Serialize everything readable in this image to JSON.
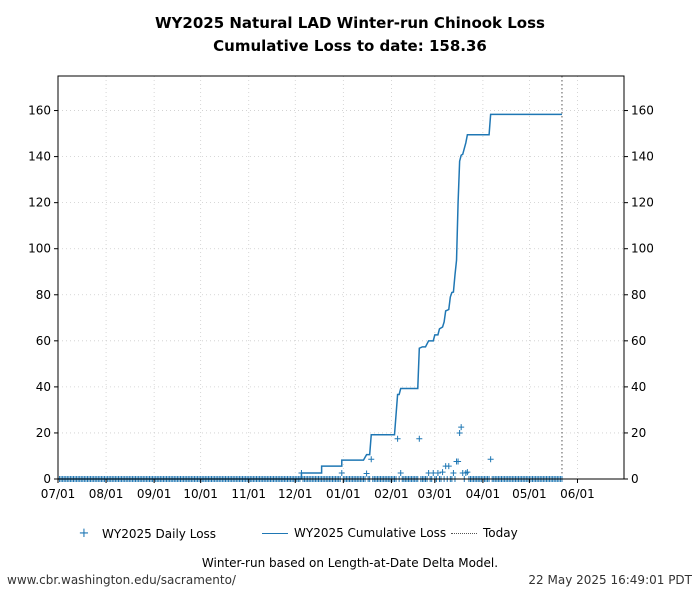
{
  "chart_data": {
    "type": "line",
    "title": "WY2025 Natural LAD Winter-run Chinook Loss",
    "subtitle": "Cumulative Loss to date: 158.36",
    "xlabel": "",
    "ylabel": "",
    "ylim": [
      0,
      175
    ],
    "yticks": [
      0,
      20,
      40,
      60,
      80,
      100,
      120,
      140,
      160
    ],
    "xlim": [
      "2024-07-01",
      "2025-07-01"
    ],
    "xticks": [
      {
        "date": "2024-07-01",
        "label": "07/01"
      },
      {
        "date": "2024-08-01",
        "label": "08/01"
      },
      {
        "date": "2024-09-01",
        "label": "09/01"
      },
      {
        "date": "2024-10-01",
        "label": "10/01"
      },
      {
        "date": "2024-11-01",
        "label": "11/01"
      },
      {
        "date": "2024-12-01",
        "label": "12/01"
      },
      {
        "date": "2025-01-01",
        "label": "01/01"
      },
      {
        "date": "2025-02-01",
        "label": "02/01"
      },
      {
        "date": "2025-03-01",
        "label": "03/01"
      },
      {
        "date": "2025-04-01",
        "label": "04/01"
      },
      {
        "date": "2025-05-01",
        "label": "05/01"
      },
      {
        "date": "2025-06-01",
        "label": "06/01"
      }
    ],
    "grid": true,
    "legend_position": "bottom",
    "series": [
      {
        "name": "WY2025 Daily Loss",
        "style": "marker-plus",
        "color": "#1f77b4",
        "points": [
          {
            "x": "2024-12-05",
            "y": 2.6
          },
          {
            "x": "2024-12-31",
            "y": 2.6
          },
          {
            "x": "2025-01-16",
            "y": 2.4
          },
          {
            "x": "2025-01-19",
            "y": 8.6
          },
          {
            "x": "2025-02-05",
            "y": 17.5
          },
          {
            "x": "2025-02-07",
            "y": 2.6
          },
          {
            "x": "2025-02-19",
            "y": 17.5
          },
          {
            "x": "2025-02-25",
            "y": 2.6
          },
          {
            "x": "2025-02-28",
            "y": 2.6
          },
          {
            "x": "2025-03-03",
            "y": 2.6
          },
          {
            "x": "2025-03-06",
            "y": 3.0
          },
          {
            "x": "2025-03-08",
            "y": 5.6
          },
          {
            "x": "2025-03-10",
            "y": 5.6
          },
          {
            "x": "2025-03-13",
            "y": 2.6
          },
          {
            "x": "2025-03-15",
            "y": 7.6
          },
          {
            "x": "2025-03-16",
            "y": 7.6
          },
          {
            "x": "2025-03-17",
            "y": 20.0
          },
          {
            "x": "2025-03-18",
            "y": 22.5
          },
          {
            "x": "2025-03-19",
            "y": 2.6
          },
          {
            "x": "2025-03-21",
            "y": 2.6
          },
          {
            "x": "2025-03-22",
            "y": 3.0
          },
          {
            "x": "2025-04-06",
            "y": 8.6
          }
        ],
        "zero_range": [
          "2024-07-01",
          "2025-05-22"
        ]
      },
      {
        "name": "WY2025 Cumulative Loss",
        "style": "line",
        "color": "#1f77b4",
        "points": [
          {
            "x": "2024-07-01",
            "y": 0
          },
          {
            "x": "2024-12-05",
            "y": 0
          },
          {
            "x": "2024-12-05",
            "y": 2.6
          },
          {
            "x": "2024-12-18",
            "y": 2.6
          },
          {
            "x": "2024-12-18",
            "y": 5.6
          },
          {
            "x": "2024-12-31",
            "y": 5.6
          },
          {
            "x": "2024-12-31",
            "y": 8.2
          },
          {
            "x": "2025-01-14",
            "y": 8.2
          },
          {
            "x": "2025-01-16",
            "y": 10.6
          },
          {
            "x": "2025-01-18",
            "y": 10.6
          },
          {
            "x": "2025-01-19",
            "y": 19.2
          },
          {
            "x": "2025-02-03",
            "y": 19.2
          },
          {
            "x": "2025-02-05",
            "y": 36.7
          },
          {
            "x": "2025-02-06",
            "y": 36.7
          },
          {
            "x": "2025-02-07",
            "y": 39.3
          },
          {
            "x": "2025-02-18",
            "y": 39.3
          },
          {
            "x": "2025-02-19",
            "y": 56.8
          },
          {
            "x": "2025-02-21",
            "y": 57.4
          },
          {
            "x": "2025-02-23",
            "y": 57.4
          },
          {
            "x": "2025-02-25",
            "y": 60.0
          },
          {
            "x": "2025-02-28",
            "y": 60.0
          },
          {
            "x": "2025-03-01",
            "y": 62.6
          },
          {
            "x": "2025-03-03",
            "y": 62.6
          },
          {
            "x": "2025-03-04",
            "y": 65.2
          },
          {
            "x": "2025-03-06",
            "y": 66.0
          },
          {
            "x": "2025-03-07",
            "y": 68.2
          },
          {
            "x": "2025-03-08",
            "y": 73.0
          },
          {
            "x": "2025-03-10",
            "y": 73.6
          },
          {
            "x": "2025-03-11",
            "y": 79.0
          },
          {
            "x": "2025-03-12",
            "y": 81.0
          },
          {
            "x": "2025-03-13",
            "y": 81.2
          },
          {
            "x": "2025-03-14",
            "y": 88.6
          },
          {
            "x": "2025-03-15",
            "y": 95.0
          },
          {
            "x": "2025-03-16",
            "y": 120.0
          },
          {
            "x": "2025-03-17",
            "y": 138.0
          },
          {
            "x": "2025-03-18",
            "y": 140.6
          },
          {
            "x": "2025-03-19",
            "y": 141.0
          },
          {
            "x": "2025-03-21",
            "y": 146.0
          },
          {
            "x": "2025-03-22",
            "y": 149.5
          },
          {
            "x": "2025-04-05",
            "y": 149.5
          },
          {
            "x": "2025-04-06",
            "y": 158.36
          },
          {
            "x": "2025-05-22",
            "y": 158.36
          }
        ]
      },
      {
        "name": "Today",
        "style": "vline-dotted",
        "color": "#555555",
        "x": "2025-05-22"
      }
    ],
    "caption": "Winter-run based on Length-at-Date Delta Model."
  },
  "footer": {
    "url": "www.cbr.washington.edu/sacramento/",
    "timestamp": "22 May 2025 16:49:01 PDT"
  }
}
